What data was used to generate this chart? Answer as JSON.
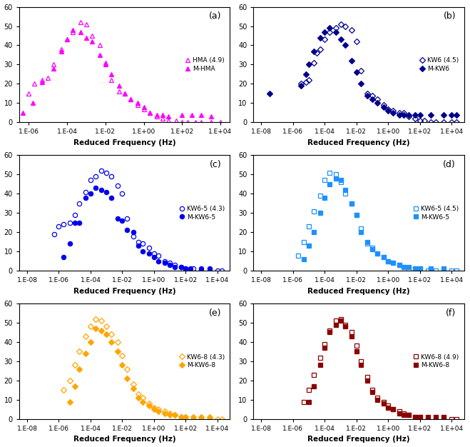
{
  "panels": [
    {
      "label": "(a)",
      "legend1": "HMA (4.9)",
      "legend2": "M-HMA",
      "color": "#FF00FF",
      "marker1": "^",
      "marker2": "^",
      "xstart": -6,
      "series1_x": [
        -6.0,
        -5.7,
        -5.3,
        -5.0,
        -4.7,
        -4.3,
        -4.0,
        -3.7,
        -3.3,
        -3.0,
        -2.7,
        -2.3,
        -2.0,
        -1.7,
        -1.3,
        -1.0,
        -0.7,
        -0.3,
        0.0,
        0.3,
        0.7,
        1.0,
        1.3,
        1.7,
        2.0,
        2.3,
        2.7,
        3.0,
        3.5,
        4.0
      ],
      "series1_y": [
        15,
        20,
        22,
        23,
        30,
        38,
        43,
        47,
        52,
        51,
        45,
        40,
        31,
        22,
        16,
        15,
        12,
        9,
        7,
        5,
        3,
        2,
        1,
        1,
        0,
        0,
        0,
        0,
        0,
        0
      ],
      "series2_x": [
        -6.3,
        -5.8,
        -5.3,
        -4.7,
        -4.3,
        -4.0,
        -3.7,
        -3.3,
        -3.0,
        -2.7,
        -2.3,
        -2.0,
        -1.7,
        -1.3,
        -1.0,
        -0.7,
        -0.3,
        0.0,
        0.3,
        0.7,
        1.0,
        1.3,
        2.0,
        2.5,
        3.0,
        3.5
      ],
      "series2_y": [
        5,
        10,
        21,
        28,
        37,
        43,
        48,
        47,
        44,
        42,
        35,
        30,
        25,
        19,
        15,
        12,
        10,
        8,
        5,
        4,
        4,
        3,
        4,
        4,
        4,
        3
      ]
    },
    {
      "label": "(b)",
      "legend1": "KW6 (4.5)",
      "legend2": "M-KW6",
      "color": "#00008B",
      "marker1": "D",
      "marker2": "D",
      "xstart": -8,
      "series1_x": [
        -5.5,
        -5.2,
        -5.0,
        -4.7,
        -4.5,
        -4.3,
        -4.0,
        -3.7,
        -3.3,
        -3.0,
        -2.7,
        -2.3,
        -2.0,
        -1.7,
        -1.3,
        -1.0,
        -0.7,
        -0.3,
        0.0,
        0.3,
        0.7,
        1.0,
        1.3,
        1.7,
        2.0,
        2.3,
        2.7,
        3.0,
        3.5,
        4.0,
        4.3
      ],
      "series1_y": [
        20,
        21,
        22,
        31,
        36,
        38,
        43,
        47,
        49,
        51,
        50,
        48,
        42,
        27,
        15,
        14,
        12,
        9,
        7,
        6,
        5,
        5,
        3,
        2,
        1,
        1,
        0,
        0,
        0,
        0,
        0
      ],
      "series2_x": [
        -7.5,
        -5.5,
        -5.2,
        -5.0,
        -4.7,
        -4.3,
        -4.0,
        -3.7,
        -3.3,
        -3.0,
        -2.7,
        -2.3,
        -2.0,
        -1.7,
        -1.3,
        -1.0,
        -0.7,
        -0.3,
        0.0,
        0.3,
        0.7,
        1.0,
        1.3,
        1.7,
        2.0,
        2.7,
        3.5,
        4.0,
        4.3
      ],
      "series2_y": [
        15,
        19,
        25,
        30,
        37,
        44,
        47,
        49,
        47,
        43,
        40,
        32,
        26,
        20,
        14,
        12,
        10,
        8,
        6,
        5,
        4,
        4,
        4,
        4,
        4,
        4,
        4,
        4,
        4
      ]
    },
    {
      "label": "(c)",
      "legend1": "KW6-5 (4.3)",
      "legend2": "M-KW6-5",
      "color": "#0000EE",
      "marker1": "o",
      "marker2": "o",
      "xstart": -8,
      "series1_x": [
        -6.3,
        -6.0,
        -5.7,
        -5.3,
        -5.0,
        -4.7,
        -4.3,
        -4.0,
        -3.7,
        -3.3,
        -3.0,
        -2.7,
        -2.3,
        -2.0,
        -1.7,
        -1.3,
        -1.0,
        -0.7,
        -0.3,
        0.0,
        0.3,
        0.7,
        1.0,
        1.3,
        1.7,
        2.0,
        2.5,
        3.0,
        3.5,
        4.0,
        4.3
      ],
      "series1_y": [
        19,
        23,
        24,
        25,
        29,
        35,
        41,
        47,
        49,
        52,
        51,
        49,
        44,
        40,
        27,
        18,
        15,
        14,
        12,
        9,
        8,
        5,
        4,
        3,
        2,
        1,
        1,
        0,
        0,
        0,
        0
      ],
      "series2_x": [
        -5.7,
        -5.3,
        -5.0,
        -4.7,
        -4.3,
        -4.0,
        -3.7,
        -3.3,
        -3.0,
        -2.7,
        -2.3,
        -2.0,
        -1.7,
        -1.3,
        -1.0,
        -0.7,
        -0.3,
        0.0,
        0.3,
        0.7,
        1.0,
        1.3,
        1.7,
        2.0,
        2.3,
        3.0,
        3.5
      ],
      "series2_y": [
        7,
        14,
        25,
        25,
        38,
        40,
        43,
        42,
        41,
        38,
        27,
        26,
        21,
        20,
        13,
        10,
        9,
        7,
        5,
        4,
        3,
        2,
        2,
        1,
        1,
        1,
        1
      ]
    },
    {
      "label": "(d)",
      "legend1": "KW6-5 (4.5)",
      "legend2": "M-KW6-5",
      "color": "#1E90FF",
      "marker1": "s",
      "marker2": "s",
      "xstart": -8,
      "series1_x": [
        -5.7,
        -5.3,
        -5.0,
        -4.7,
        -4.3,
        -4.0,
        -3.7,
        -3.3,
        -3.0,
        -2.7,
        -2.3,
        -2.0,
        -1.7,
        -1.3,
        -1.0,
        -0.7,
        -0.3,
        0.0,
        0.3,
        0.7,
        1.0,
        1.3,
        1.7,
        2.0,
        2.5,
        3.0,
        3.5,
        4.0,
        4.3
      ],
      "series1_y": [
        8,
        15,
        23,
        31,
        39,
        47,
        51,
        50,
        46,
        40,
        35,
        29,
        22,
        14,
        12,
        9,
        7,
        5,
        4,
        3,
        2,
        1,
        1,
        1,
        0,
        0,
        0,
        0,
        0
      ],
      "series2_x": [
        -5.3,
        -5.0,
        -4.7,
        -4.3,
        -4.0,
        -3.7,
        -3.3,
        -3.0,
        -2.7,
        -2.3,
        -2.0,
        -1.7,
        -1.3,
        -1.0,
        -0.7,
        -0.3,
        0.0,
        0.3,
        0.7,
        1.0,
        1.3,
        1.7,
        2.0,
        2.7,
        3.5
      ],
      "series2_y": [
        6,
        13,
        20,
        30,
        38,
        45,
        48,
        47,
        42,
        35,
        29,
        20,
        15,
        11,
        9,
        7,
        5,
        4,
        3,
        2,
        2,
        1,
        1,
        1,
        1
      ]
    },
    {
      "label": "(e)",
      "legend1": "KW6-8 (4.3)",
      "legend2": "M-KW6-8",
      "color": "#FFA500",
      "marker1": "D",
      "marker2": "D",
      "xstart": -6,
      "series1_x": [
        -5.7,
        -5.3,
        -5.0,
        -4.7,
        -4.3,
        -4.0,
        -3.7,
        -3.3,
        -3.0,
        -2.7,
        -2.3,
        -2.0,
        -1.7,
        -1.3,
        -1.0,
        -0.7,
        -0.3,
        0.0,
        0.3,
        0.7,
        1.0,
        1.3,
        1.7,
        2.0,
        2.5,
        3.0,
        3.5,
        4.0,
        4.3
      ],
      "series1_y": [
        15,
        20,
        28,
        35,
        43,
        48,
        52,
        51,
        48,
        44,
        40,
        33,
        26,
        18,
        13,
        11,
        8,
        6,
        5,
        4,
        3,
        2,
        1,
        1,
        0,
        0,
        0,
        0,
        0
      ],
      "series2_x": [
        -5.3,
        -5.0,
        -4.7,
        -4.3,
        -4.0,
        -3.7,
        -3.3,
        -3.0,
        -2.7,
        -2.3,
        -2.0,
        -1.7,
        -1.3,
        -1.0,
        -0.7,
        -0.3,
        0.0,
        0.3,
        0.7,
        1.0,
        1.3,
        1.7,
        2.0,
        2.5,
        3.0,
        3.5
      ],
      "series2_y": [
        9,
        17,
        26,
        34,
        40,
        47,
        46,
        44,
        40,
        35,
        28,
        21,
        16,
        11,
        9,
        7,
        5,
        4,
        3,
        2,
        2,
        1,
        1,
        1,
        1,
        1
      ]
    },
    {
      "label": "(f)",
      "legend1": "KW6-8 (4.9)",
      "legend2": "M-KW6-8",
      "color": "#8B0000",
      "marker1": "s",
      "marker2": "s",
      "xstart": -8,
      "series1_x": [
        -5.3,
        -5.0,
        -4.7,
        -4.3,
        -4.0,
        -3.7,
        -3.3,
        -3.0,
        -2.7,
        -2.3,
        -2.0,
        -1.7,
        -1.3,
        -1.0,
        -0.7,
        -0.3,
        0.0,
        0.3,
        0.7,
        1.0,
        1.3,
        1.7,
        2.0,
        2.5,
        3.0,
        3.5,
        4.0,
        4.3
      ],
      "series1_y": [
        9,
        15,
        23,
        32,
        39,
        46,
        51,
        52,
        49,
        45,
        38,
        30,
        22,
        15,
        11,
        9,
        7,
        5,
        4,
        3,
        2,
        1,
        1,
        0,
        0,
        0,
        0,
        0
      ],
      "series2_x": [
        -5.0,
        -4.7,
        -4.3,
        -4.0,
        -3.7,
        -3.3,
        -3.0,
        -2.7,
        -2.3,
        -2.0,
        -1.7,
        -1.3,
        -1.0,
        -0.7,
        -0.3,
        0.0,
        0.3,
        0.7,
        1.0,
        1.3,
        1.7,
        2.0,
        2.5,
        3.0,
        3.5
      ],
      "series2_y": [
        9,
        17,
        28,
        37,
        45,
        49,
        51,
        48,
        43,
        35,
        28,
        20,
        14,
        10,
        8,
        6,
        5,
        3,
        2,
        2,
        1,
        1,
        1,
        1,
        1
      ]
    }
  ],
  "xlabel": "Reduced Frequency (Hz)",
  "ylim": [
    0,
    60
  ],
  "yticks": [
    0,
    10,
    20,
    30,
    40,
    50,
    60
  ],
  "xtick_vals_a": [
    1e-06,
    0.0001,
    0.01,
    1.0,
    100.0,
    10000.0
  ],
  "xtick_labels_a": [
    "1.E-06",
    "1.E-04",
    "1.E-02",
    "1.E+00",
    "1.E+02",
    "1.E+04"
  ],
  "xtick_vals_b": [
    1e-08,
    1e-06,
    0.0001,
    0.01,
    1.0,
    100.0,
    10000.0
  ],
  "xtick_labels_b": [
    "1.E-08",
    "1.E-06",
    "1.E-04",
    "1.E-02",
    "1.E+00",
    "1.E+02",
    "1.E+04"
  ],
  "bg_color": "#FFFFFF"
}
